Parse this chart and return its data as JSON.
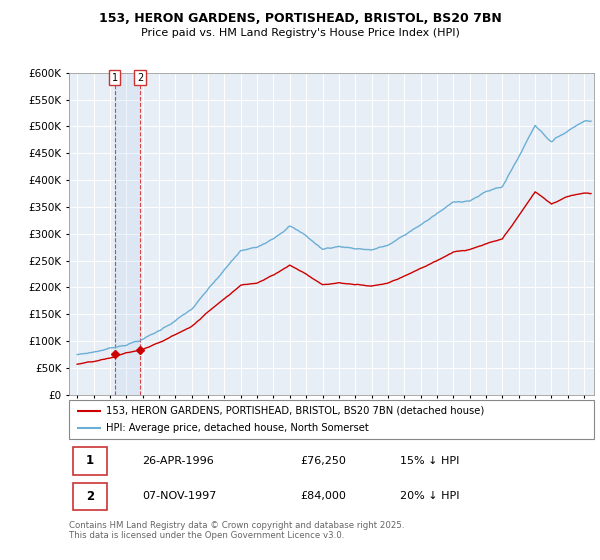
{
  "title1": "153, HERON GARDENS, PORTISHEAD, BRISTOL, BS20 7BN",
  "title2": "Price paid vs. HM Land Registry's House Price Index (HPI)",
  "legend1": "153, HERON GARDENS, PORTISHEAD, BRISTOL, BS20 7BN (detached house)",
  "legend2": "HPI: Average price, detached house, North Somerset",
  "annotation1_date": "26-APR-1996",
  "annotation1_price": "£76,250",
  "annotation1_note": "15% ↓ HPI",
  "annotation2_date": "07-NOV-1997",
  "annotation2_price": "£84,000",
  "annotation2_note": "20% ↓ HPI",
  "footer": "Contains HM Land Registry data © Crown copyright and database right 2025.\nThis data is licensed under the Open Government Licence v3.0.",
  "hpi_color": "#6baed6",
  "price_color": "#cc0000",
  "background_color": "#ffffff",
  "plot_bg_color": "#e8eef5",
  "grid_color": "#ffffff",
  "ylim": [
    0,
    600000
  ],
  "yticks": [
    0,
    50000,
    100000,
    150000,
    200000,
    250000,
    300000,
    350000,
    400000,
    450000,
    500000,
    550000,
    600000
  ],
  "sale_dates": [
    1996.29,
    1997.84
  ],
  "sale_prices": [
    76250,
    84000
  ],
  "hpi_anchors_x": [
    1994.0,
    1995.0,
    1996.0,
    1997.0,
    1998.0,
    1999.0,
    2000.0,
    2001.0,
    2002.0,
    2003.0,
    2004.0,
    2005.0,
    2006.0,
    2007.0,
    2008.0,
    2009.0,
    2010.0,
    2011.0,
    2012.0,
    2013.0,
    2014.0,
    2015.0,
    2016.0,
    2017.0,
    2018.0,
    2019.0,
    2020.0,
    2021.0,
    2022.0,
    2023.0,
    2024.0,
    2025.0
  ],
  "hpi_anchors_y": [
    75000,
    80000,
    87000,
    95000,
    105000,
    120000,
    140000,
    160000,
    195000,
    230000,
    265000,
    270000,
    290000,
    315000,
    295000,
    270000,
    275000,
    272000,
    270000,
    278000,
    295000,
    315000,
    335000,
    355000,
    360000,
    375000,
    385000,
    440000,
    500000,
    470000,
    490000,
    510000
  ],
  "red_anchors_x": [
    1994.0,
    1995.0,
    1996.0,
    1997.0,
    1998.0,
    1999.0,
    2000.0,
    2001.0,
    2002.0,
    2003.0,
    2004.0,
    2005.0,
    2006.0,
    2007.0,
    2008.0,
    2009.0,
    2010.0,
    2011.0,
    2012.0,
    2013.0,
    2014.0,
    2015.0,
    2016.0,
    2017.0,
    2018.0,
    2019.0,
    2020.0,
    2021.0,
    2022.0,
    2023.0,
    2024.0,
    2025.0
  ],
  "red_anchors_y": [
    63000,
    67000,
    73000,
    84000,
    91000,
    104000,
    121000,
    138000,
    168000,
    197000,
    225000,
    230000,
    248000,
    268000,
    250000,
    228000,
    232000,
    228000,
    226000,
    233000,
    248000,
    265000,
    280000,
    298000,
    302000,
    313000,
    322000,
    368000,
    418000,
    392000,
    408000,
    415000
  ]
}
